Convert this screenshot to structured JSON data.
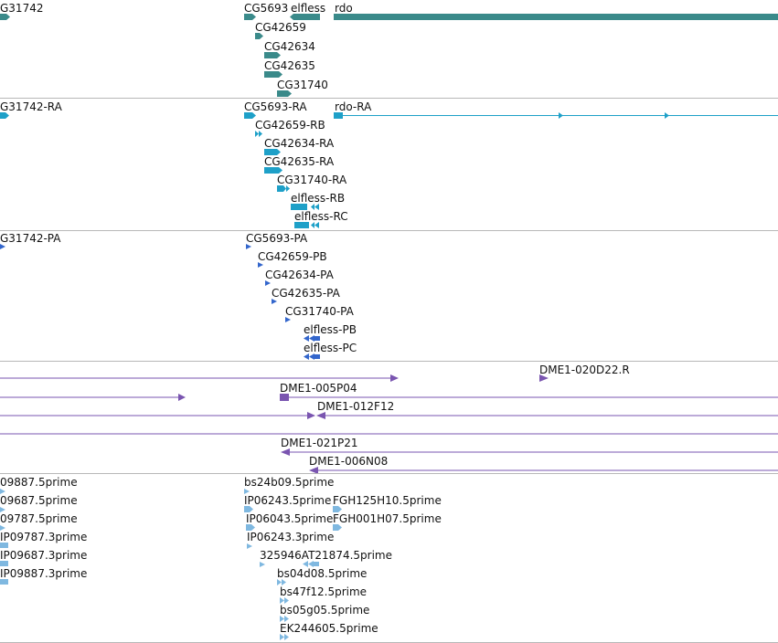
{
  "colors": {
    "gene": "#3a8a8a",
    "transcript": "#1ea0c8",
    "protein": "#3366cc",
    "clone": "#7a55b0",
    "est": "#7fb8e0",
    "divider": "#b8b8b8"
  },
  "tracks": {
    "genes": {
      "cg31742": "G31742",
      "cg5693": "CG5693",
      "elfless": "elfless",
      "rdo": "rdo",
      "cg42659": "CG42659",
      "cg42634": "CG42634",
      "cg42635": "CG42635",
      "cg31740": "CG31740"
    },
    "transcripts": {
      "cg31742_ra": "G31742-RA",
      "cg5693_ra": "CG5693-RA",
      "rdo_ra": "rdo-RA",
      "cg42659_rb": "CG42659-RB",
      "cg42634_ra": "CG42634-RA",
      "cg42635_ra": "CG42635-RA",
      "cg31740_ra": "CG31740-RA",
      "elfless_rb": "elfless-RB",
      "elfless_rc": "elfless-RC"
    },
    "proteins": {
      "cg31742_pa": "G31742-PA",
      "cg5693_pa": "CG5693-PA",
      "cg42659_pb": "CG42659-PB",
      "cg42634_pa": "CG42634-PA",
      "cg42635_pa": "CG42635-PA",
      "cg31740_pa": "CG31740-PA",
      "elfless_pb": "elfless-PB",
      "elfless_pc": "elfless-PC"
    },
    "clones": {
      "dme1_020d22r": "DME1-020D22.R",
      "dme1_005p04": "DME1-005P04",
      "dme1_012f12": "DME1-012F12",
      "dme1_021p21": "DME1-021P21",
      "dme1_006n08": "DME1-006N08"
    },
    "ests": {
      "e09887_5": "09887.5prime",
      "e09687_5": "09687.5prime",
      "e09787_5": "09787.5prime",
      "ip09787_3": "IP09787.3prime",
      "ip09687_3": "IP09687.3prime",
      "ip09887_3": "IP09887.3prime",
      "bs24b09_5": "bs24b09.5prime",
      "ip06243_5": "IP06243.5prime",
      "fgh125h10_5": "FGH125H10.5prime",
      "ip06043_5": "IP06043.5prime",
      "fgh001h07_5": "FGH001H07.5prime",
      "ip06243_3": "IP06243.3prime",
      "at325946_5": "325946AT21874.5prime",
      "bs04d08_5": "bs04d08.5prime",
      "bs47f12_5": "bs47f12.5prime",
      "bs05g05_5": "bs05g05.5prime",
      "ek244605_5": "EK244605.5prime"
    }
  }
}
